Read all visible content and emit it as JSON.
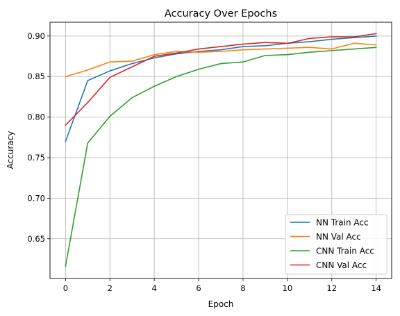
{
  "chart_data": {
    "type": "line",
    "title": "Accuracy Over Epochs",
    "xlabel": "Epoch",
    "ylabel": "Accuracy",
    "x": [
      0,
      1,
      2,
      3,
      4,
      5,
      6,
      7,
      8,
      9,
      10,
      11,
      12,
      13,
      14
    ],
    "xlim": [
      -0.7,
      14.7
    ],
    "ylim": [
      0.601,
      0.917
    ],
    "xticks": [
      0,
      2,
      4,
      6,
      8,
      10,
      12,
      14
    ],
    "yticks": [
      0.65,
      0.7,
      0.75,
      0.8,
      0.85,
      0.9
    ],
    "xtick_labels": [
      "0",
      "2",
      "4",
      "6",
      "8",
      "10",
      "12",
      "14"
    ],
    "ytick_labels": [
      "0.65",
      "0.70",
      "0.75",
      "0.80",
      "0.85",
      "0.90"
    ],
    "grid": true,
    "legend_position": "lower-right",
    "series": [
      {
        "name": "NN Train Acc",
        "color": "#1f77b4",
        "values": [
          0.77,
          0.845,
          0.857,
          0.866,
          0.873,
          0.878,
          0.881,
          0.883,
          0.887,
          0.888,
          0.891,
          0.893,
          0.896,
          0.898,
          0.9
        ]
      },
      {
        "name": "NN Val Acc",
        "color": "#ff7f0e",
        "values": [
          0.85,
          0.858,
          0.868,
          0.869,
          0.877,
          0.881,
          0.88,
          0.881,
          0.883,
          0.884,
          0.885,
          0.886,
          0.884,
          0.891,
          0.889
        ]
      },
      {
        "name": "CNN Train Acc",
        "color": "#2ca02c",
        "values": [
          0.616,
          0.768,
          0.801,
          0.824,
          0.838,
          0.85,
          0.859,
          0.866,
          0.868,
          0.876,
          0.877,
          0.88,
          0.882,
          0.884,
          0.886
        ]
      },
      {
        "name": "CNN Val Acc",
        "color": "#d62728",
        "values": [
          0.79,
          0.818,
          0.849,
          0.862,
          0.875,
          0.879,
          0.884,
          0.887,
          0.89,
          0.892,
          0.891,
          0.897,
          0.899,
          0.899,
          0.903
        ]
      }
    ]
  }
}
